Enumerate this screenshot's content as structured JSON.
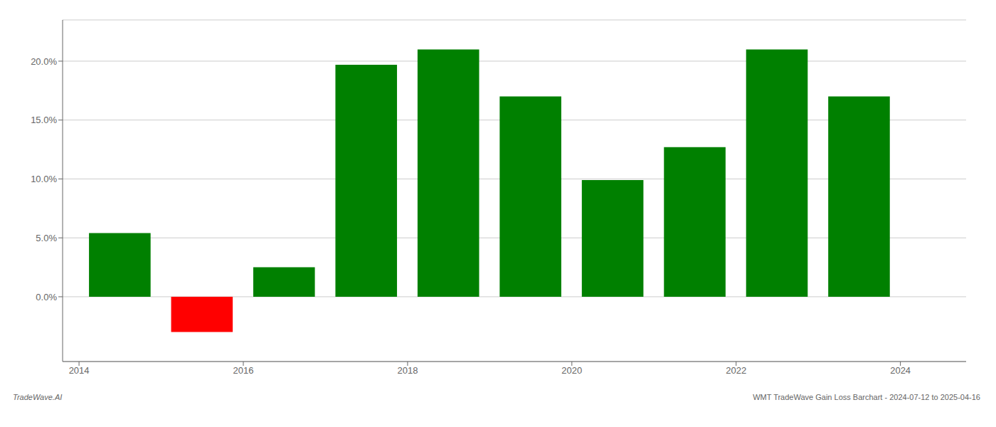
{
  "chart_data": {
    "type": "bar",
    "x": [
      2014.5,
      2015.5,
      2016.5,
      2017.5,
      2018.5,
      2019.5,
      2020.5,
      2021.5,
      2022.5,
      2023.5
    ],
    "values": [
      0.054,
      -0.03,
      0.025,
      0.197,
      0.21,
      0.17,
      0.099,
      0.127,
      0.21,
      0.17
    ],
    "colors": [
      "#008000",
      "#ff0000",
      "#008000",
      "#008000",
      "#008000",
      "#008000",
      "#008000",
      "#008000",
      "#008000",
      "#008000"
    ],
    "xlim": [
      2013.8,
      2024.8
    ],
    "xticks": [
      2014,
      2016,
      2018,
      2020,
      2022,
      2024
    ],
    "ylim": [
      -0.055,
      0.235
    ],
    "yticks": [
      {
        "value": 0.0,
        "label": "0.0%"
      },
      {
        "value": 0.05,
        "label": "5.0%"
      },
      {
        "value": 0.1,
        "label": "10.0%"
      },
      {
        "value": 0.15,
        "label": "15.0%"
      },
      {
        "value": 0.2,
        "label": "20.0%"
      }
    ],
    "grid": true,
    "annotations": [
      "TradeWave.AI",
      "WMT TradeWave Gain Loss Barchart - 2024-07-12 to 2025-04-16"
    ]
  }
}
